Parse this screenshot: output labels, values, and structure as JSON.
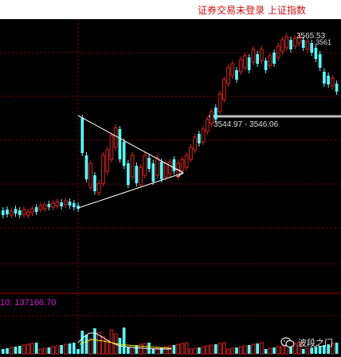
{
  "header": {
    "title": "证券交易未登录  上证指数"
  },
  "chart": {
    "band_label": "3544.97 - 3546.06",
    "high_label": "3565.53",
    "high2_label": "3561",
    "volume_label": "10: 137166.70"
  },
  "watermark": {
    "text": "波段之门",
    "icon": "wechat-icon"
  },
  "colors": {
    "up": "#e02020",
    "down": "#54ffff",
    "triangle": "#ffffff",
    "volume_text": "#d020d0",
    "grid": "#8b0000"
  }
}
